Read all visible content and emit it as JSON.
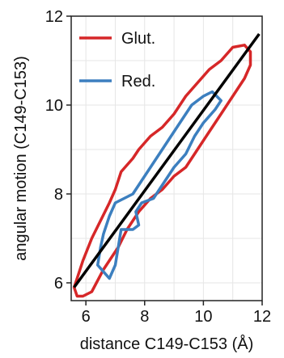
{
  "chart_data": {
    "type": "line",
    "xlabel": "distance C149-C153 (Å)",
    "ylabel": "angular motion (C149-C153)",
    "xlim": [
      5.5,
      12
    ],
    "ylim": [
      5.6,
      12
    ],
    "xticks": [
      6,
      8,
      10,
      12
    ],
    "yticks": [
      6,
      8,
      10,
      12
    ],
    "grid": true,
    "legend_position": "top-left",
    "series": [
      {
        "name": "Glut.",
        "color": "#d62728",
        "points": [
          [
            5.7,
            5.7
          ],
          [
            5.9,
            5.7
          ],
          [
            6.2,
            5.8
          ],
          [
            6.6,
            6.3
          ],
          [
            6.9,
            6.6
          ],
          [
            7.1,
            6.8
          ],
          [
            7.4,
            7.2
          ],
          [
            7.8,
            7.6
          ],
          [
            8.2,
            7.9
          ],
          [
            8.6,
            8.1
          ],
          [
            9.0,
            8.4
          ],
          [
            9.4,
            8.6
          ],
          [
            9.8,
            9.0
          ],
          [
            10.2,
            9.4
          ],
          [
            10.6,
            9.8
          ],
          [
            11.0,
            10.2
          ],
          [
            11.4,
            10.6
          ],
          [
            11.6,
            10.9
          ],
          [
            11.6,
            11.2
          ],
          [
            11.4,
            11.35
          ],
          [
            11.0,
            11.3
          ],
          [
            10.6,
            11.0
          ],
          [
            10.2,
            10.8
          ],
          [
            9.8,
            10.5
          ],
          [
            9.4,
            10.2
          ],
          [
            9.0,
            9.8
          ],
          [
            8.6,
            9.5
          ],
          [
            8.2,
            9.3
          ],
          [
            7.8,
            9.0
          ],
          [
            7.6,
            8.8
          ],
          [
            7.2,
            8.5
          ],
          [
            7.0,
            8.1
          ],
          [
            6.8,
            7.8
          ],
          [
            6.5,
            7.4
          ],
          [
            6.2,
            7.0
          ],
          [
            5.9,
            6.5
          ],
          [
            5.7,
            6.1
          ],
          [
            5.6,
            5.9
          ],
          [
            5.7,
            5.7
          ]
        ]
      },
      {
        "name": "Red.",
        "color": "#3c7fbf",
        "points": [
          [
            6.4,
            6.4
          ],
          [
            6.8,
            6.1
          ],
          [
            7.0,
            6.4
          ],
          [
            7.1,
            6.8
          ],
          [
            7.2,
            7.2
          ],
          [
            7.6,
            7.2
          ],
          [
            7.8,
            7.3
          ],
          [
            7.7,
            7.6
          ],
          [
            7.9,
            7.8
          ],
          [
            8.3,
            7.9
          ],
          [
            8.7,
            8.3
          ],
          [
            9.0,
            8.6
          ],
          [
            9.4,
            8.9
          ],
          [
            9.7,
            9.3
          ],
          [
            10.0,
            9.6
          ],
          [
            10.4,
            9.9
          ],
          [
            10.6,
            10.1
          ],
          [
            10.3,
            10.3
          ],
          [
            10.0,
            10.2
          ],
          [
            9.6,
            10.0
          ],
          [
            9.2,
            9.6
          ],
          [
            8.9,
            9.3
          ],
          [
            8.5,
            8.9
          ],
          [
            8.2,
            8.6
          ],
          [
            7.9,
            8.3
          ],
          [
            7.6,
            8.0
          ],
          [
            7.3,
            7.9
          ],
          [
            7.0,
            7.8
          ],
          [
            6.8,
            7.5
          ],
          [
            6.6,
            7.1
          ],
          [
            6.5,
            6.8
          ],
          [
            6.4,
            6.4
          ]
        ]
      }
    ],
    "diagonal": {
      "color": "#000000",
      "from": [
        5.6,
        5.9
      ],
      "to": [
        11.9,
        11.6
      ]
    }
  }
}
